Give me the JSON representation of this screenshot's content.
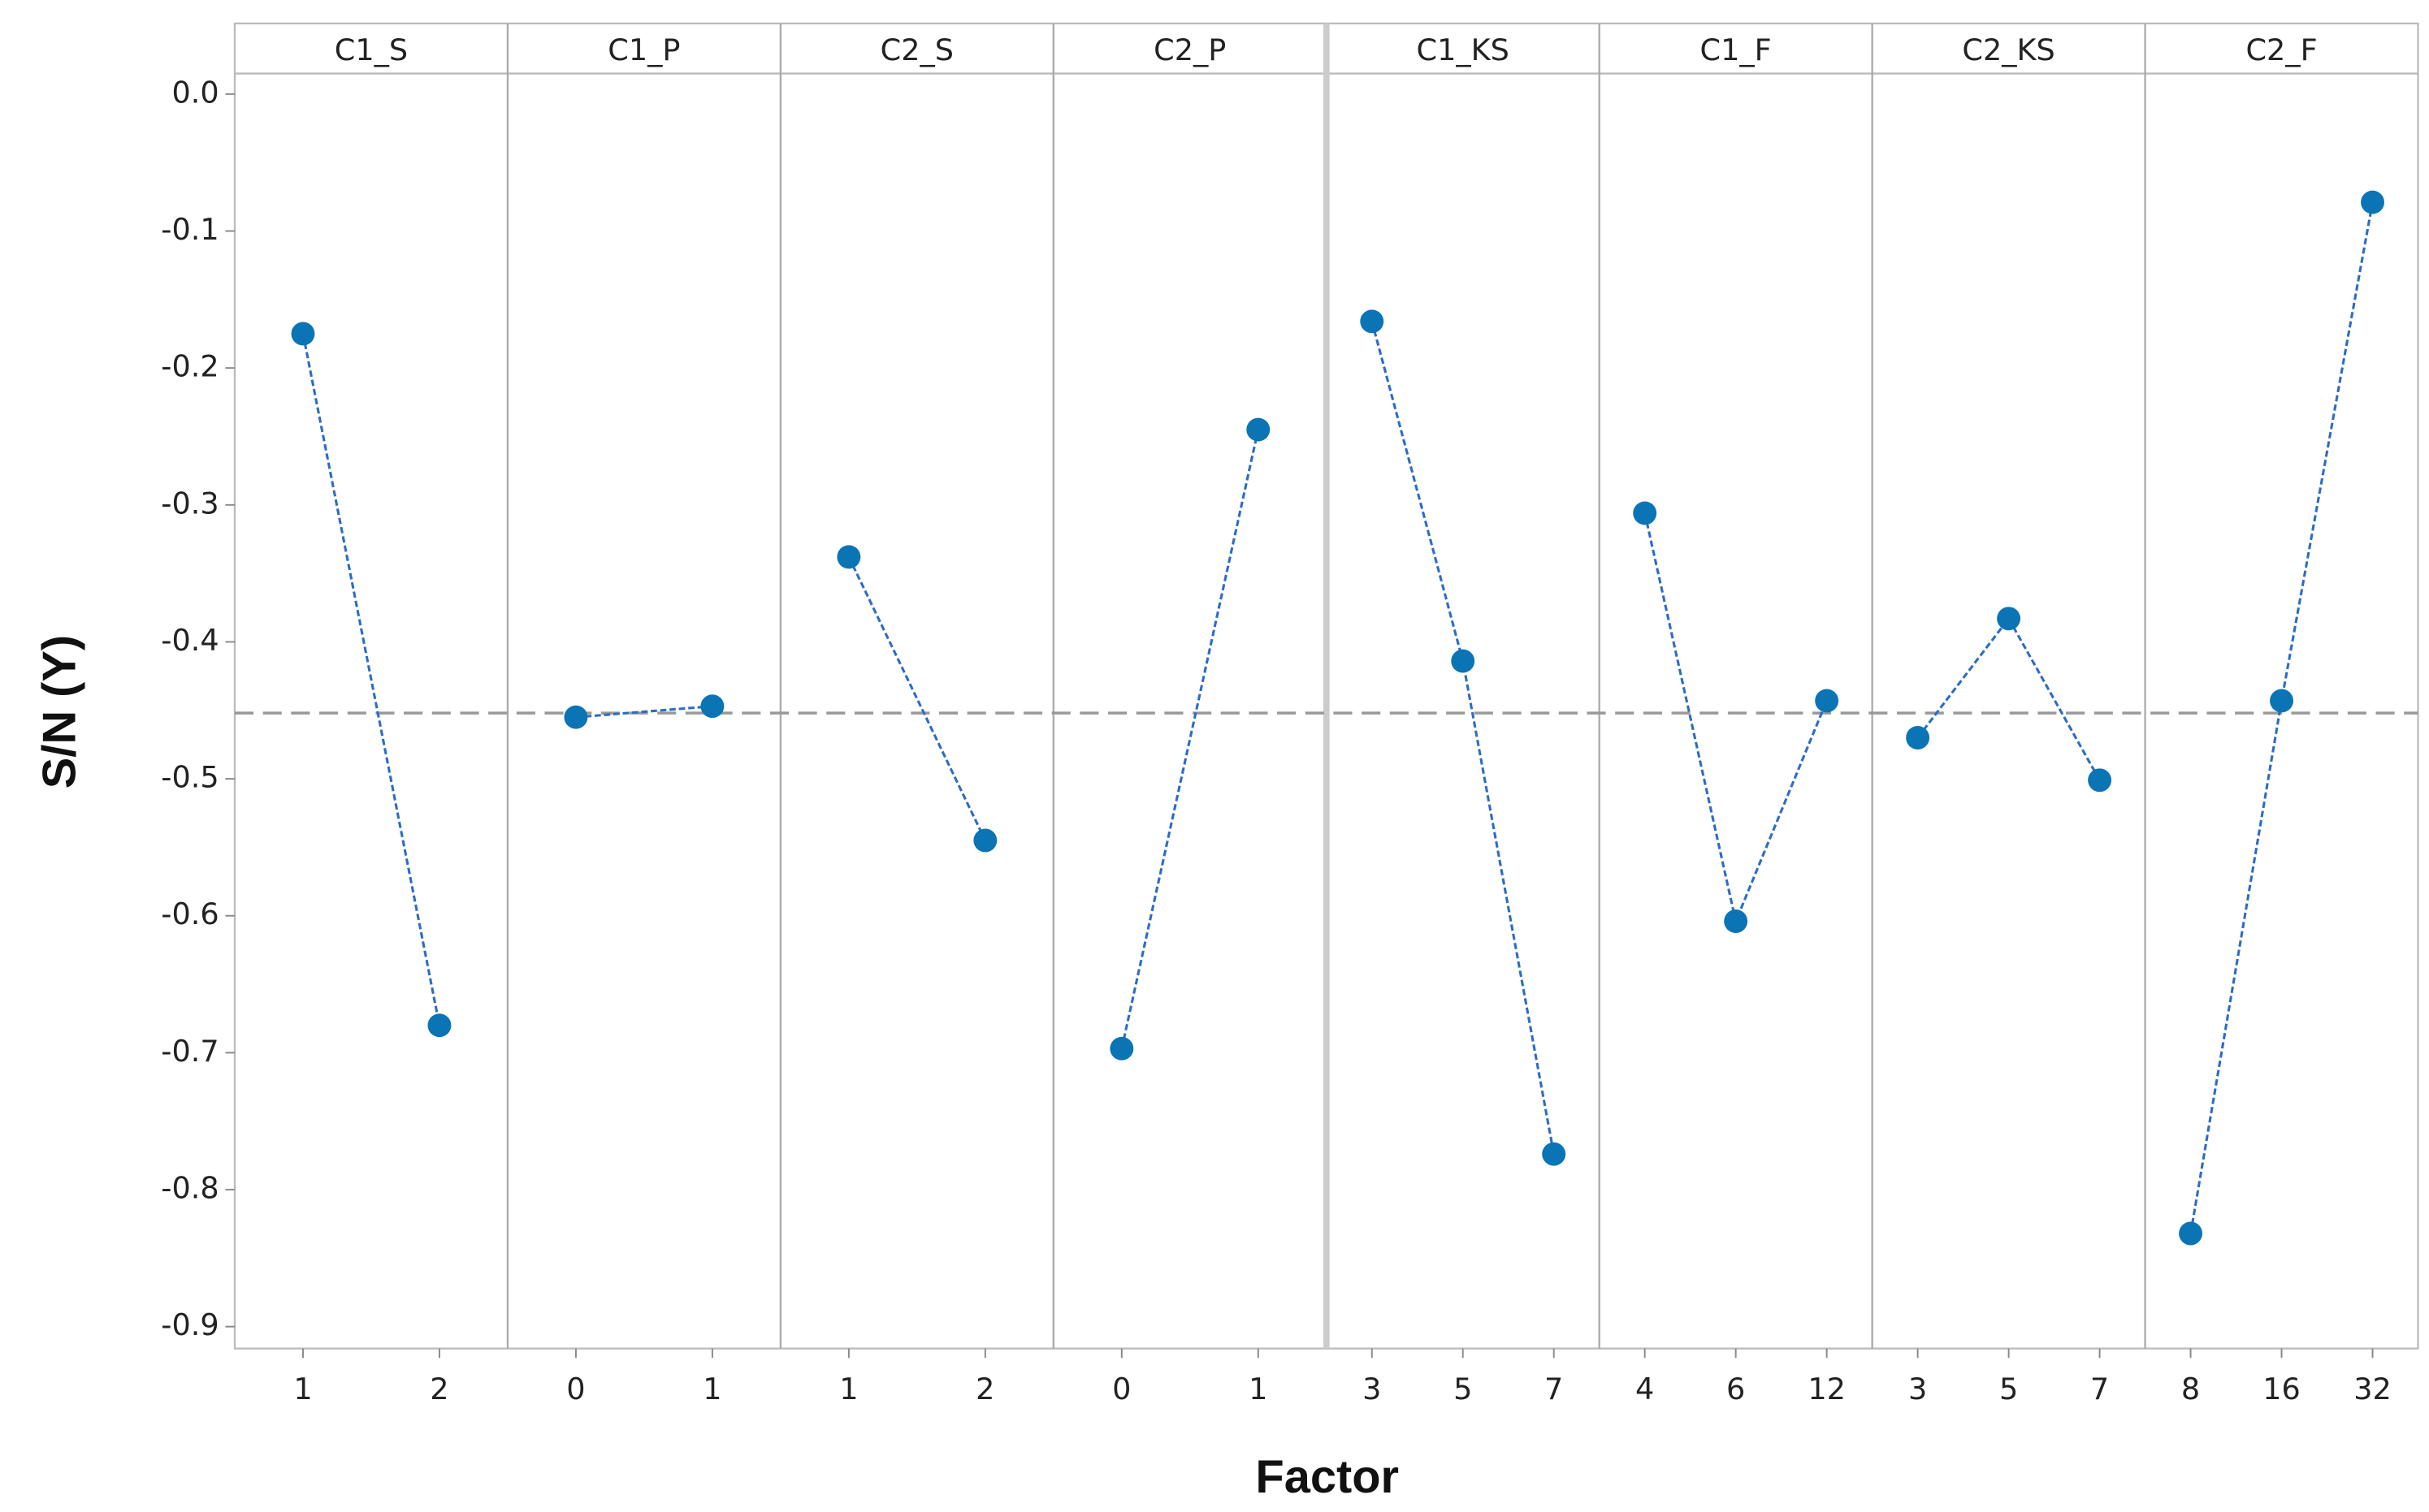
{
  "chart_data": {
    "type": "line",
    "x_label": "Factor",
    "y_label": "S/N (Y)",
    "ylim": [
      -0.916,
      0.015
    ],
    "yticks": [
      {
        "value": 0,
        "label": "0.0"
      },
      -0.1,
      -0.2,
      -0.3,
      -0.4,
      -0.5,
      -0.6,
      -0.7,
      -0.8,
      -0.9
    ],
    "reference_line": -0.452,
    "color": "#0a74b5",
    "panels": [
      {
        "name": "C1_S",
        "categories": [
          "1",
          "2"
        ],
        "values": [
          -0.175,
          -0.68
        ]
      },
      {
        "name": "C1_P",
        "categories": [
          "0",
          "1"
        ],
        "values": [
          -0.455,
          -0.447
        ]
      },
      {
        "name": "C2_S",
        "categories": [
          "1",
          "2"
        ],
        "values": [
          -0.338,
          -0.545
        ]
      },
      {
        "name": "C2_P",
        "categories": [
          "0",
          "1"
        ],
        "values": [
          -0.697,
          -0.245
        ]
      },
      {
        "name": "C1_KS",
        "categories": [
          "3",
          "5",
          "7"
        ],
        "values": [
          -0.166,
          -0.414,
          -0.774
        ]
      },
      {
        "name": "C1_F",
        "categories": [
          "4",
          "6",
          "12"
        ],
        "values": [
          -0.306,
          -0.604,
          -0.443
        ]
      },
      {
        "name": "C2_KS",
        "categories": [
          "3",
          "5",
          "7"
        ],
        "values": [
          -0.47,
          -0.383,
          -0.501
        ]
      },
      {
        "name": "C2_F",
        "categories": [
          "8",
          "16",
          "32"
        ],
        "values": [
          -0.832,
          -0.443,
          -0.079
        ]
      }
    ]
  }
}
